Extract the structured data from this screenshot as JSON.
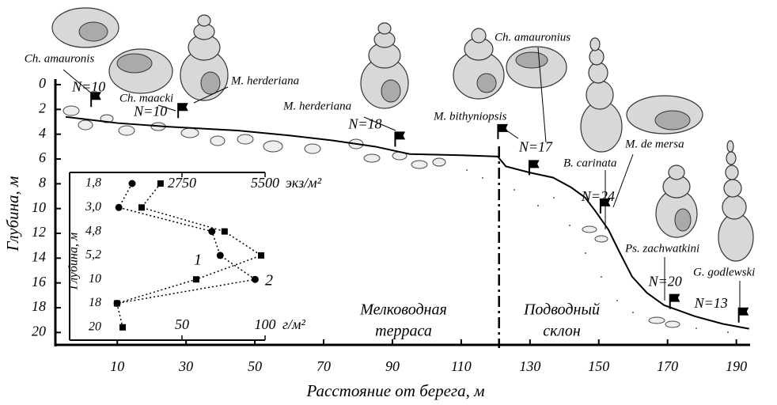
{
  "chart_data": [
    {
      "type": "line",
      "xlabel": "Расстояние от берега, м",
      "ylabel": "Глубина, м",
      "x": [
        -5,
        10,
        25,
        45,
        60,
        72.5,
        85,
        95,
        110,
        120.6,
        123,
        130,
        136.7,
        142,
        146,
        149,
        152.8,
        156,
        159.7,
        164,
        169,
        178,
        186,
        193.7
      ],
      "series": [
        {
          "color": "#000000",
          "values": [
            2.6,
            3.1,
            3.4,
            3.7,
            4.1,
            4.5,
            5,
            5.6,
            5.7,
            5.8,
            6.6,
            7.1,
            7.5,
            8.3,
            9.1,
            10.2,
            11.7,
            13.5,
            15.5,
            16.8,
            17.8,
            18.7,
            19.3,
            19.7
          ]
        }
      ],
      "xlim": [
        -8,
        194
      ],
      "xticks": [
        10,
        30,
        50,
        70,
        90,
        110,
        130,
        150,
        170,
        190
      ],
      "ylim": [
        0,
        21
      ],
      "yticks": [
        0,
        2,
        4,
        6,
        8,
        10,
        12,
        14,
        16,
        18,
        20
      ],
      "y_inverted": true,
      "divider_x": 121,
      "zones": [
        "Мелководная",
        "терраса",
        "Подводный",
        "склон"
      ],
      "stations": {
        "x": [
          2.4,
          27.7,
          90.8,
          120.7,
          129.8,
          150.5,
          170.7,
          190.7
        ],
        "depth": [
          1.8,
          2.7,
          5,
          4.4,
          7.3,
          10.4,
          18.1,
          19.2
        ],
        "labels": [
          "N=10",
          "N=10",
          "N=18",
          null,
          "N=17",
          "N=24",
          "N=20",
          "N=13"
        ]
      },
      "species": [
        "Ch. amauronis",
        "Ch. maacki",
        "M. herderiana",
        "M. herderiana",
        "Ch. amauronius",
        "M. bithyniopsis",
        "M. de mersa",
        "B. carinata",
        "Ps. zachwatkini",
        "G. godlewski"
      ]
    },
    {
      "type": "line",
      "ylabel": "Глубина, м",
      "categories": [
        "1,8",
        "3,0",
        "4,8",
        "5,2",
        "10",
        "18",
        "20"
      ],
      "series": [
        {
          "name": "1",
          "marker": "square",
          "axis": "x2",
          "color": "#000000",
          "values": [
            2040,
            1414,
            4160,
            5370,
            3220,
            600,
            786
          ]
        },
        {
          "name": "2",
          "marker": "circle",
          "color": "#000000",
          "values": [
            20,
            12,
            68,
            73,
            94,
            11,
            null
          ]
        }
      ],
      "xlim": [
        -17.6,
        100
      ],
      "xticks": [
        50,
        100
      ],
      "xlabel": "г/м²",
      "x2lim": [
        -968,
        5500
      ],
      "x2ticks": [
        2750,
        5500
      ],
      "x2label": "экз/м²"
    }
  ]
}
